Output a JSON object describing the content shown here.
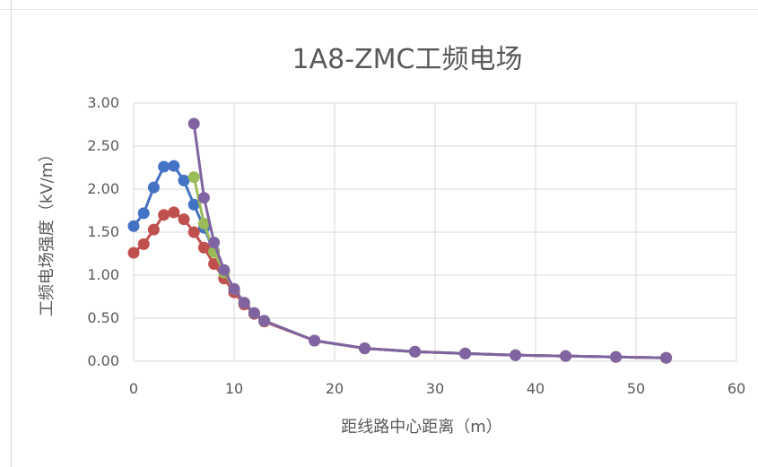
{
  "chart_data": {
    "type": "line",
    "title": "1A8-ZMC工频电场",
    "xlabel": "距线路中心距离（m）",
    "ylabel": "工频电场强度（kV/m）",
    "xlim": [
      0,
      60
    ],
    "ylim": [
      0,
      3.0
    ],
    "x_ticks": [
      "0",
      "10",
      "20",
      "30",
      "40",
      "50",
      "60"
    ],
    "y_ticks": [
      "0.00",
      "0.50",
      "1.00",
      "1.50",
      "2.00",
      "2.50",
      "3.00"
    ],
    "grid": true,
    "legend": "none",
    "series": [
      {
        "color": "#4472c4",
        "points": [
          [
            0,
            1.57
          ],
          [
            1,
            1.72
          ],
          [
            2,
            2.02
          ],
          [
            3,
            2.26
          ],
          [
            4,
            2.27
          ],
          [
            5,
            2.1
          ],
          [
            6,
            1.82
          ],
          [
            7,
            1.55
          ],
          [
            8,
            1.28
          ],
          [
            9,
            1.04
          ],
          [
            10,
            0.84
          ],
          [
            11,
            0.68
          ],
          [
            12,
            0.56
          ],
          [
            13,
            0.47
          ],
          [
            18,
            0.24
          ],
          [
            23,
            0.15
          ],
          [
            28,
            0.11
          ],
          [
            33,
            0.09
          ],
          [
            38,
            0.07
          ],
          [
            43,
            0.06
          ],
          [
            48,
            0.05
          ],
          [
            53,
            0.04
          ]
        ]
      },
      {
        "color": "#c0504d",
        "points": [
          [
            0,
            1.26
          ],
          [
            1,
            1.36
          ],
          [
            2,
            1.53
          ],
          [
            3,
            1.7
          ],
          [
            4,
            1.73
          ],
          [
            5,
            1.65
          ],
          [
            6,
            1.5
          ],
          [
            7,
            1.32
          ],
          [
            8,
            1.13
          ],
          [
            9,
            0.96
          ],
          [
            10,
            0.8
          ],
          [
            11,
            0.66
          ],
          [
            12,
            0.55
          ],
          [
            13,
            0.46
          ],
          [
            18,
            0.24
          ],
          [
            23,
            0.15
          ],
          [
            28,
            0.11
          ],
          [
            33,
            0.09
          ],
          [
            38,
            0.07
          ],
          [
            43,
            0.06
          ],
          [
            48,
            0.05
          ],
          [
            53,
            0.04
          ]
        ]
      },
      {
        "color": "#9bbb59",
        "points": [
          [
            6,
            2.14
          ],
          [
            7,
            1.6
          ],
          [
            8,
            1.27
          ],
          [
            9,
            1.03
          ],
          [
            10,
            0.84
          ],
          [
            11,
            0.68
          ],
          [
            12,
            0.56
          ],
          [
            13,
            0.47
          ],
          [
            18,
            0.24
          ],
          [
            23,
            0.15
          ],
          [
            28,
            0.11
          ],
          [
            33,
            0.09
          ],
          [
            38,
            0.07
          ],
          [
            43,
            0.06
          ],
          [
            48,
            0.05
          ],
          [
            53,
            0.04
          ]
        ]
      },
      {
        "color": "#8064a2",
        "points": [
          [
            6,
            2.76
          ],
          [
            7,
            1.9
          ],
          [
            8,
            1.38
          ],
          [
            9,
            1.06
          ],
          [
            10,
            0.84
          ],
          [
            11,
            0.68
          ],
          [
            12,
            0.56
          ],
          [
            13,
            0.47
          ],
          [
            18,
            0.24
          ],
          [
            23,
            0.15
          ],
          [
            28,
            0.11
          ],
          [
            33,
            0.09
          ],
          [
            38,
            0.07
          ],
          [
            43,
            0.06
          ],
          [
            48,
            0.05
          ],
          [
            53,
            0.04
          ]
        ]
      }
    ]
  }
}
